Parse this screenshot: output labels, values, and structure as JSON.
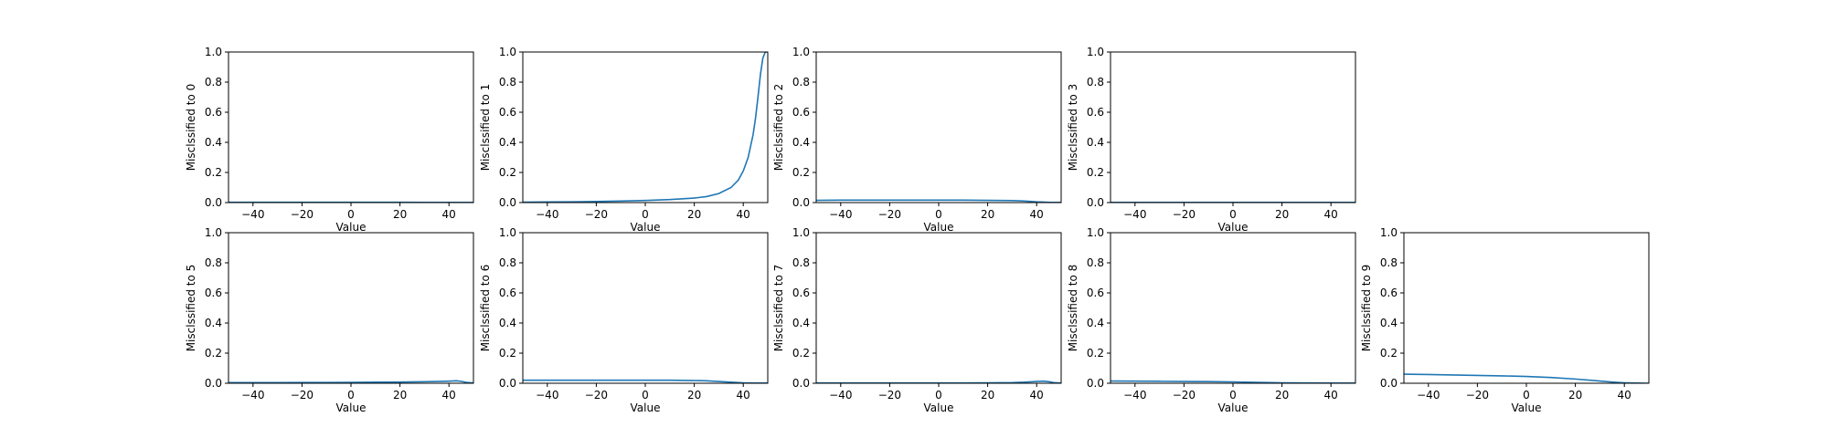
{
  "figure": {
    "line_color": "#1f77b4",
    "x_ticks": [
      -40,
      -20,
      0,
      20,
      40
    ],
    "x_tick_labels": [
      "−40",
      "−20",
      "0",
      "20",
      "40"
    ],
    "y_ticks": [
      0,
      0.2,
      0.4,
      0.6,
      0.8,
      1.0
    ],
    "y_tick_labels": [
      "0.0",
      "0.2",
      "0.4",
      "0.6",
      "0.8",
      "1.0"
    ]
  },
  "chart_data": [
    {
      "type": "line",
      "xlabel": "Value",
      "ylabel": "Misclssified to 0",
      "xlim": [
        -50,
        50
      ],
      "ylim": [
        0,
        1
      ],
      "x": [
        -50,
        -40,
        -30,
        -20,
        -10,
        0,
        10,
        20,
        30,
        40,
        50
      ],
      "values": [
        0.002,
        0.002,
        0.002,
        0.002,
        0.002,
        0.002,
        0.002,
        0.002,
        0.001,
        0.001,
        0.001
      ]
    },
    {
      "type": "line",
      "xlabel": "Value",
      "ylabel": "Misclssified to 1",
      "xlim": [
        -50,
        50
      ],
      "ylim": [
        0,
        1
      ],
      "x": [
        -50,
        -40,
        -30,
        -20,
        -10,
        0,
        10,
        20,
        25,
        30,
        35,
        38,
        40,
        42,
        44,
        45,
        46,
        47,
        48,
        49,
        50
      ],
      "values": [
        0.003,
        0.004,
        0.005,
        0.007,
        0.01,
        0.014,
        0.02,
        0.03,
        0.04,
        0.06,
        0.1,
        0.15,
        0.21,
        0.3,
        0.45,
        0.56,
        0.7,
        0.85,
        0.96,
        1.0,
        1.0
      ]
    },
    {
      "type": "line",
      "xlabel": "Value",
      "ylabel": "Misclssified to 2",
      "xlim": [
        -50,
        50
      ],
      "ylim": [
        0,
        1
      ],
      "x": [
        -50,
        -40,
        -30,
        -20,
        -10,
        0,
        10,
        20,
        30,
        35,
        40,
        45,
        50
      ],
      "values": [
        0.015,
        0.016,
        0.016,
        0.016,
        0.016,
        0.016,
        0.016,
        0.015,
        0.013,
        0.01,
        0.005,
        0.002,
        0.001
      ]
    },
    {
      "type": "line",
      "xlabel": "Value",
      "ylabel": "Misclssified to 3",
      "xlim": [
        -50,
        50
      ],
      "ylim": [
        0,
        1
      ],
      "x": [
        -50,
        -40,
        -30,
        -20,
        -10,
        0,
        10,
        20,
        30,
        40,
        50
      ],
      "values": [
        0.001,
        0.001,
        0.001,
        0.001,
        0.001,
        0.001,
        0.001,
        0.001,
        0.001,
        0.001,
        0.001
      ]
    },
    {
      "type": "line",
      "xlabel": "Value",
      "ylabel": "Misclssified to 5",
      "xlim": [
        -50,
        50
      ],
      "ylim": [
        0,
        1
      ],
      "x": [
        -50,
        -40,
        -30,
        -20,
        -10,
        0,
        10,
        20,
        30,
        35,
        40,
        43,
        45,
        47,
        50
      ],
      "values": [
        0.004,
        0.004,
        0.004,
        0.005,
        0.005,
        0.006,
        0.007,
        0.008,
        0.01,
        0.012,
        0.014,
        0.016,
        0.013,
        0.006,
        0.002
      ]
    },
    {
      "type": "line",
      "xlabel": "Value",
      "ylabel": "Misclssified to 6",
      "xlim": [
        -50,
        50
      ],
      "ylim": [
        0,
        1
      ],
      "x": [
        -50,
        -40,
        -30,
        -20,
        -10,
        0,
        10,
        20,
        25,
        30,
        35,
        40,
        45,
        50
      ],
      "values": [
        0.02,
        0.02,
        0.02,
        0.02,
        0.02,
        0.02,
        0.02,
        0.018,
        0.016,
        0.012,
        0.007,
        0.003,
        0.001,
        0.001
      ]
    },
    {
      "type": "line",
      "xlabel": "Value",
      "ylabel": "Misclssified to 7",
      "xlim": [
        -50,
        50
      ],
      "ylim": [
        0,
        1
      ],
      "x": [
        -50,
        -40,
        -30,
        -20,
        -10,
        0,
        10,
        20,
        30,
        35,
        40,
        43,
        45,
        47,
        50
      ],
      "values": [
        0.002,
        0.002,
        0.002,
        0.002,
        0.002,
        0.002,
        0.002,
        0.003,
        0.004,
        0.007,
        0.012,
        0.014,
        0.01,
        0.004,
        0.001
      ]
    },
    {
      "type": "line",
      "xlabel": "Value",
      "ylabel": "Misclssified to 8",
      "xlim": [
        -50,
        50
      ],
      "ylim": [
        0,
        1
      ],
      "x": [
        -50,
        -40,
        -30,
        -20,
        -10,
        0,
        10,
        20,
        30,
        40,
        50
      ],
      "values": [
        0.015,
        0.014,
        0.013,
        0.012,
        0.011,
        0.009,
        0.006,
        0.003,
        0.002,
        0.001,
        0.001
      ]
    },
    {
      "type": "line",
      "xlabel": "Value",
      "ylabel": "Misclssified to 9",
      "xlim": [
        -50,
        50
      ],
      "ylim": [
        0,
        1
      ],
      "x": [
        -50,
        -40,
        -30,
        -20,
        -10,
        0,
        10,
        20,
        30,
        35,
        40,
        45,
        50
      ],
      "values": [
        0.06,
        0.058,
        0.055,
        0.052,
        0.049,
        0.045,
        0.038,
        0.028,
        0.015,
        0.008,
        0.003,
        0.001,
        0.0
      ]
    }
  ]
}
